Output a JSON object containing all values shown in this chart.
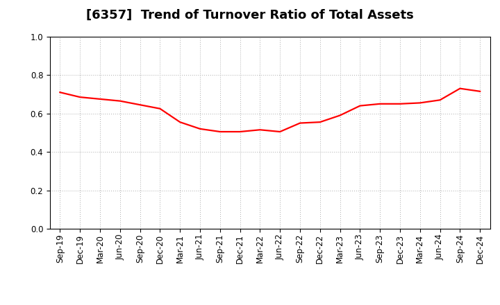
{
  "title": "[6357]  Trend of Turnover Ratio of Total Assets",
  "x_labels": [
    "Sep-19",
    "Dec-19",
    "Mar-20",
    "Jun-20",
    "Sep-20",
    "Dec-20",
    "Mar-21",
    "Jun-21",
    "Sep-21",
    "Dec-21",
    "Mar-22",
    "Jun-22",
    "Sep-22",
    "Dec-22",
    "Mar-23",
    "Jun-23",
    "Sep-23",
    "Dec-23",
    "Mar-24",
    "Jun-24",
    "Sep-24",
    "Dec-24"
  ],
  "y_values": [
    0.71,
    0.685,
    0.675,
    0.665,
    0.645,
    0.625,
    0.555,
    0.52,
    0.505,
    0.505,
    0.515,
    0.505,
    0.55,
    0.555,
    0.59,
    0.64,
    0.65,
    0.65,
    0.655,
    0.67,
    0.73,
    0.715
  ],
  "line_color": "#FF0000",
  "line_width": 1.6,
  "ylim": [
    0.0,
    1.0
  ],
  "yticks": [
    0.0,
    0.2,
    0.4,
    0.6,
    0.8,
    1.0
  ],
  "background_color": "#FFFFFF",
  "grid_color": "#AAAAAA",
  "grid_dotsize": 0.5,
  "title_fontsize": 13,
  "tick_fontsize": 8.5
}
